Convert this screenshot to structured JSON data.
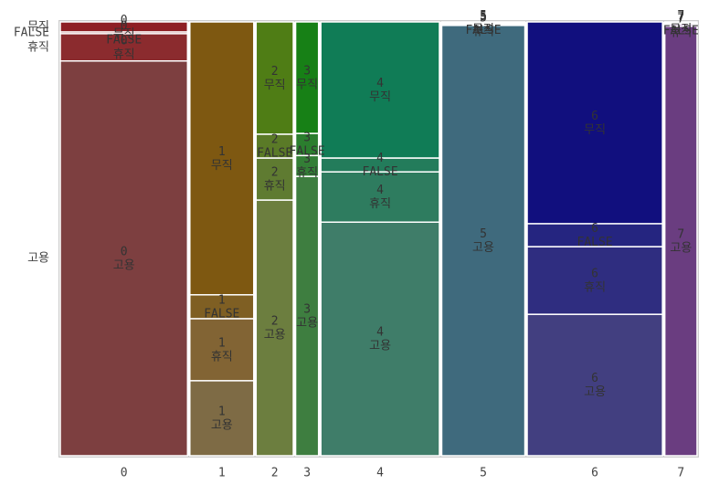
{
  "chart_data": {
    "type": "mosaic",
    "categories": [
      "0",
      "1",
      "2",
      "3",
      "4",
      "5",
      "6",
      "7"
    ],
    "widths": [
      20.5,
      10.3,
      6.0,
      3.7,
      19.1,
      13.4,
      21.8,
      5.2
    ],
    "series": [
      {
        "name": "고용",
        "values": [
          91.0,
          17.3,
          59.0,
          64.4,
          53.9,
          99.2,
          32.6,
          99.0
        ],
        "colors": [
          "#7d3f40",
          "#7e6b45",
          "#6c7e3f",
          "#3e7e40",
          "#3f7d69",
          "#3f6a7d",
          "#423f80",
          "#6a3d80"
        ]
      },
      {
        "name": "휴직",
        "values": [
          6.3,
          14.3,
          9.7,
          4.8,
          11.6,
          0.3,
          15.6,
          0.4
        ],
        "colors": [
          "#8b2b2e",
          "#826434",
          "#5f7b31",
          "#337e36",
          "#2e7c5f",
          "#306a80",
          "#2f2d80",
          "#6b3380"
        ]
      },
      {
        "name": "FALSE",
        "values": [
          0.4,
          5.5,
          5.5,
          5.1,
          3.2,
          0.3,
          5.3,
          0.3
        ],
        "colors": [
          "#8c2529",
          "#7f5f23",
          "#5a7a27",
          "#2b7e2e",
          "#237c5b",
          "#2d6a80",
          "#252580",
          "#6b2f80"
        ]
      },
      {
        "name": "무직",
        "values": [
          2.3,
          62.9,
          25.9,
          25.7,
          31.4,
          0.2,
          46.5,
          0.3
        ],
        "colors": [
          "#8e1f24",
          "#7e5811",
          "#4f7d15",
          "#178016",
          "#107c56",
          "#2a6a80",
          "#110f7e",
          "#6b2a80"
        ]
      }
    ]
  }
}
